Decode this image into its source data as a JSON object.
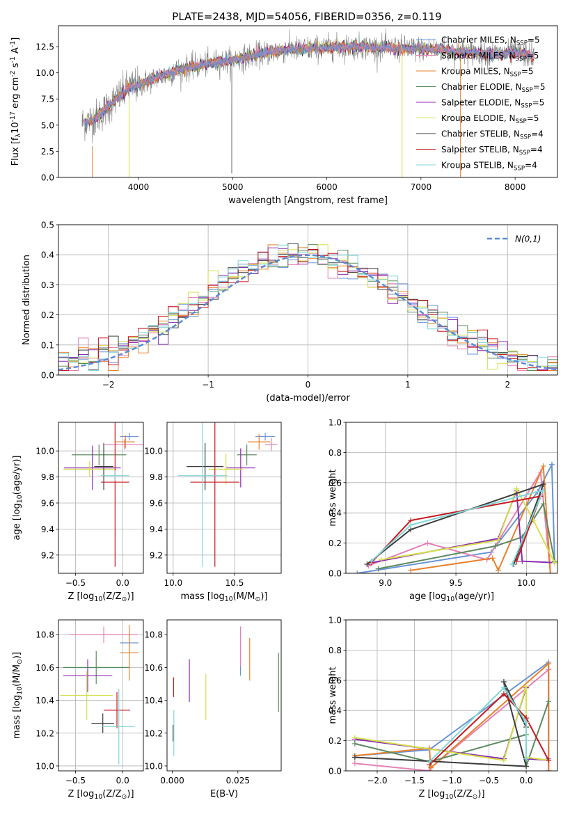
{
  "figure_title": "PLATE=2438, MJD=54056, FIBERID=0356, z=0.119",
  "colors": {
    "Chabrier MILES": "#6a93d8",
    "Salpeter MILES": "#e680b5",
    "Kroupa MILES": "#e8802a",
    "Chabrier ELODIE": "#5b8a5e",
    "Salpeter ELODIE": "#8c2ab3",
    "Kroupa ELODIE": "#d4e04c",
    "Chabrier STELIB": "#3d3d3d",
    "Salpeter STELIB": "#c8161d",
    "Kroupa STELIB": "#7fd6d6",
    "data": "#808080",
    "gauss": "#5a8ad6"
  },
  "chart_data": [
    {
      "id": "spectrum",
      "type": "line",
      "xlabel": "wavelength [Angstrom, rest frame]",
      "ylabel": "Flux [f$_\\lambda$10$^{-17}$ erg cm$^{-2}$ s$^{-1}$ A$^{-1}$]",
      "xlim": [
        3150,
        8450
      ],
      "ylim": [
        0,
        14.5
      ],
      "xticks": [
        4000,
        5000,
        6000,
        7000,
        8000
      ],
      "yticks": [
        0.0,
        2.5,
        5.0,
        7.5,
        10.0,
        12.5
      ],
      "grid": false,
      "legend_position": "right",
      "legend": [
        {
          "label": "Chabrier MILES, N$_{SSP}$=5",
          "key": "Chabrier MILES"
        },
        {
          "label": "Salpeter MILES, N$_{SSP}$=5",
          "key": "Salpeter MILES"
        },
        {
          "label": "Kroupa MILES, N$_{SSP}$=5",
          "key": "Kroupa MILES"
        },
        {
          "label": "Chabrier ELODIE, N$_{SSP}$=5",
          "key": "Chabrier ELODIE"
        },
        {
          "label": "Salpeter ELODIE, N$_{SSP}$=5",
          "key": "Salpeter ELODIE"
        },
        {
          "label": "Kroupa ELODIE, N$_{SSP}$=5",
          "key": "Kroupa ELODIE"
        },
        {
          "label": "Chabrier STELIB, N$_{SSP}$=4",
          "key": "Chabrier STELIB"
        },
        {
          "label": "Salpeter STELIB, N$_{SSP}$=4",
          "key": "Salpeter STELIB"
        },
        {
          "label": "Kroupa STELIB, N$_{SSP}$=4",
          "key": "Kroupa STELIB"
        }
      ],
      "continuum": {
        "x": [
          3400,
          3500,
          3600,
          3700,
          3800,
          3900,
          4000,
          4100,
          4200,
          4300,
          4400,
          4600,
          4800,
          5000,
          5200,
          5400,
          5600,
          5800,
          6000,
          6200,
          6400,
          6600,
          6800,
          7000,
          7200,
          7400,
          7600,
          7800,
          8000,
          8200
        ],
        "y": [
          5.2,
          5.5,
          6.0,
          7.0,
          7.8,
          8.6,
          8.8,
          9.2,
          9.6,
          9.8,
          10.2,
          10.6,
          11.0,
          11.2,
          11.6,
          12.0,
          12.2,
          12.3,
          12.4,
          12.5,
          12.5,
          12.4,
          12.3,
          12.3,
          12.2,
          12.0,
          11.9,
          11.8,
          11.9,
          11.6
        ]
      }
    },
    {
      "id": "residuals",
      "type": "histogram",
      "xlabel": "(data-model)/error",
      "ylabel": "Normed distribution",
      "xlim": [
        -2.5,
        2.5
      ],
      "ylim": [
        0,
        0.5
      ],
      "xticks": [
        -2,
        -1,
        0,
        1,
        2
      ],
      "yticks": [
        0.0,
        0.1,
        0.2,
        0.3,
        0.4,
        0.5
      ],
      "grid": true,
      "legend_position": "top-right",
      "legend": [
        {
          "label": "N(0,1)",
          "key": "gauss"
        }
      ],
      "bin_width": 0.1,
      "bin_start": -2.5,
      "gaussian": {
        "mean": 0,
        "sigma": 1
      }
    },
    {
      "id": "age-vs-Z",
      "type": "errorbar",
      "xlabel": "Z [log$_{10}$(Z/Z$_\\odot$)]",
      "ylabel": "age  [log$_{10}$(age/yr)]",
      "xlim": [
        -0.68,
        0.22
      ],
      "ylim": [
        9.06,
        10.22
      ],
      "xticks": [
        -0.5,
        0.0
      ],
      "yticks": [
        9.2,
        9.4,
        9.6,
        9.8,
        10.0
      ],
      "grid": true,
      "points": [
        {
          "key": "Chabrier MILES",
          "x": 0.07,
          "xerr": 0.1,
          "y": 10.11,
          "yerr": 0.03
        },
        {
          "key": "Salpeter MILES",
          "x": 0.02,
          "xerr": 0.21,
          "y": 10.05,
          "yerr": 0.04
        },
        {
          "key": "Kroupa MILES",
          "x": 0.03,
          "xerr": 0.1,
          "y": 10.07,
          "yerr": 0.05
        },
        {
          "key": "Chabrier ELODIE",
          "x": -0.25,
          "xerr": 0.29,
          "y": 9.97,
          "yerr": 0.08
        },
        {
          "key": "Salpeter ELODIE",
          "x": -0.32,
          "xerr": 0.3,
          "y": 9.87,
          "yerr": 0.17
        },
        {
          "key": "Kroupa ELODIE",
          "x": -0.35,
          "xerr": 0.28,
          "y": 9.86,
          "yerr": 0.06
        },
        {
          "key": "Chabrier STELIB",
          "x": -0.2,
          "xerr": 0.1,
          "y": 9.88,
          "yerr": 0.18
        },
        {
          "key": "Salpeter STELIB",
          "x": -0.08,
          "xerr": 0.15,
          "y": 9.76,
          "yerr": 0.65
        },
        {
          "key": "Kroupa STELIB",
          "x": -0.08,
          "xerr": 0.15,
          "y": 9.81,
          "yerr": 0.04
        }
      ]
    },
    {
      "id": "age-vs-mass",
      "type": "errorbar",
      "xlabel": "mass [log$_{10}$(M/M$_\\odot$)]",
      "ylabel": "",
      "xlim": [
        9.95,
        10.88
      ],
      "ylim": [
        9.06,
        10.22
      ],
      "xticks": [
        10.0,
        10.5
      ],
      "yticks": [
        9.2,
        9.4,
        9.6,
        9.8,
        10.0
      ],
      "grid": true,
      "points": [
        {
          "key": "Chabrier MILES",
          "x": 10.75,
          "xerr": 0.08,
          "y": 10.11,
          "yerr": 0.03
        },
        {
          "key": "Salpeter MILES",
          "x": 10.8,
          "xerr": 0.05,
          "y": 10.05,
          "yerr": 0.05
        },
        {
          "key": "Kroupa MILES",
          "x": 10.7,
          "xerr": 0.09,
          "y": 10.07,
          "yerr": 0.06
        },
        {
          "key": "Chabrier ELODIE",
          "x": 10.6,
          "xerr": 0.08,
          "y": 9.97,
          "yerr": 0.08
        },
        {
          "key": "Salpeter ELODIE",
          "x": 10.55,
          "xerr": 0.12,
          "y": 9.87,
          "yerr": 0.15
        },
        {
          "key": "Kroupa ELODIE",
          "x": 10.43,
          "xerr": 0.14,
          "y": 9.86,
          "yerr": 0.12
        },
        {
          "key": "Chabrier STELIB",
          "x": 10.26,
          "xerr": 0.15,
          "y": 9.88,
          "yerr": 0.18
        },
        {
          "key": "Salpeter STELIB",
          "x": 10.34,
          "xerr": 0.2,
          "y": 9.76,
          "yerr": 0.65
        },
        {
          "key": "Kroupa STELIB",
          "x": 10.24,
          "xerr": 0.2,
          "y": 9.81,
          "yerr": 0.7
        }
      ]
    },
    {
      "id": "weight-vs-age",
      "type": "line",
      "xlabel": "age  [log$_{10}$(age/yr)]",
      "ylabel": "mass weight",
      "xlim": [
        8.72,
        10.22
      ],
      "ylim": [
        0,
        1.0
      ],
      "xticks": [
        9.0,
        9.5,
        10.0
      ],
      "yticks": [
        0.0,
        0.2,
        0.4,
        0.6,
        0.8,
        1.0
      ],
      "grid": true,
      "series": [
        {
          "key": "Chabrier MILES",
          "x": [
            8.8,
            9.75,
            10.08,
            10.18,
            10.2
          ],
          "y": [
            0.0,
            0.14,
            0.54,
            0.72,
            0.08
          ]
        },
        {
          "key": "Salpeter MILES",
          "x": [
            8.88,
            9.3,
            9.72,
            10.1,
            10.17
          ],
          "y": [
            0.05,
            0.2,
            0.09,
            0.67,
            0.0
          ]
        },
        {
          "key": "Kroupa MILES",
          "x": [
            9.18,
            9.76,
            9.8,
            10.12,
            10.17
          ],
          "y": [
            0.02,
            0.1,
            0.02,
            0.71,
            0.0
          ]
        },
        {
          "key": "Chabrier ELODIE",
          "x": [
            8.95,
            9.78,
            9.97,
            10.12,
            10.2
          ],
          "y": [
            0.03,
            0.18,
            0.24,
            0.46,
            0.08
          ]
        },
        {
          "key": "Salpeter ELODIE",
          "x": [
            8.9,
            9.8,
            9.93,
            9.97,
            10.2
          ],
          "y": [
            0.07,
            0.23,
            0.55,
            0.08,
            0.07
          ]
        },
        {
          "key": "Kroupa ELODIE",
          "x": [
            8.97,
            9.8,
            9.93,
            10.05,
            10.2
          ],
          "y": [
            0.09,
            0.22,
            0.56,
            0.35,
            0.07
          ]
        },
        {
          "key": "Chabrier STELIB",
          "x": [
            8.87,
            9.18,
            10.12,
            9.91
          ],
          "y": [
            0.06,
            0.29,
            0.59,
            0.06
          ]
        },
        {
          "key": "Salpeter STELIB",
          "x": [
            8.9,
            9.18,
            10.1,
            9.93
          ],
          "y": [
            0.07,
            0.35,
            0.51,
            0.08
          ]
        },
        {
          "key": "Kroupa STELIB",
          "x": [
            8.9,
            9.18,
            10.12,
            9.9
          ],
          "y": [
            0.08,
            0.32,
            0.55,
            0.06
          ]
        }
      ]
    },
    {
      "id": "mass-vs-Z",
      "type": "errorbar",
      "xlabel": "Z [log$_{10}$(Z/Z$_\\odot$)]",
      "ylabel": "mass [log$_{10}$(M/M$_\\odot$)]",
      "xlim": [
        -0.68,
        0.22
      ],
      "ylim": [
        9.97,
        10.89
      ],
      "xticks": [
        -0.5,
        0.0
      ],
      "yticks": [
        10.0,
        10.2,
        10.4,
        10.6,
        10.8
      ],
      "grid": true,
      "points": [
        {
          "key": "Chabrier MILES",
          "x": 0.07,
          "xerr": 0.1,
          "y": 10.75,
          "yerr": 0.06
        },
        {
          "key": "Salpeter MILES",
          "x": -0.2,
          "xerr": 0.36,
          "y": 10.8,
          "yerr": 0.05
        },
        {
          "key": "Kroupa MILES",
          "x": 0.07,
          "xerr": 0.1,
          "y": 10.69,
          "yerr": 0.17
        },
        {
          "key": "Chabrier ELODIE",
          "x": -0.28,
          "xerr": 0.35,
          "y": 10.6,
          "yerr": 0.1
        },
        {
          "key": "Salpeter ELODIE",
          "x": -0.37,
          "xerr": 0.26,
          "y": 10.55,
          "yerr": 0.1
        },
        {
          "key": "Kroupa ELODIE",
          "x": -0.38,
          "xerr": 0.28,
          "y": 10.43,
          "yerr": 0.15
        },
        {
          "key": "Chabrier STELIB",
          "x": -0.21,
          "xerr": 0.12,
          "y": 10.26,
          "yerr": 0.06
        },
        {
          "key": "Salpeter STELIB",
          "x": -0.06,
          "xerr": 0.14,
          "y": 10.34,
          "yerr": 0.11
        },
        {
          "key": "Kroupa STELIB",
          "x": -0.04,
          "xerr": 0.17,
          "y": 10.24,
          "yerr": 0.23
        }
      ]
    },
    {
      "id": "mass-vs-EBV",
      "type": "errorbar",
      "xlabel": "E(B-V)",
      "ylabel": "",
      "xlim": [
        -0.002,
        0.0415
      ],
      "ylim": [
        9.97,
        10.89
      ],
      "xticks": [
        0.0,
        0.025
      ],
      "yticks": [
        10.0,
        10.2,
        10.4,
        10.6,
        10.8
      ],
      "grid": false,
      "points": [
        {
          "key": "Chabrier MILES",
          "x": 0.026,
          "xerr": 0,
          "y": 10.7,
          "yerr": 0.15
        },
        {
          "key": "Salpeter MILES",
          "x": 0.026,
          "xerr": 0,
          "y": 10.73,
          "yerr": 0.12
        },
        {
          "key": "Kroupa MILES",
          "x": 0.0295,
          "xerr": 0,
          "y": 10.65,
          "yerr": 0.13
        },
        {
          "key": "Chabrier ELODIE",
          "x": 0.0405,
          "xerr": 0,
          "y": 10.51,
          "yerr": 0.18
        },
        {
          "key": "Salpeter ELODIE",
          "x": 0.0065,
          "xerr": 0,
          "y": 10.52,
          "yerr": 0.13
        },
        {
          "key": "Kroupa ELODIE",
          "x": 0.0128,
          "xerr": 0,
          "y": 10.42,
          "yerr": 0.14
        },
        {
          "key": "Chabrier STELIB",
          "x": 0.0003,
          "xerr": 0,
          "y": 10.2,
          "yerr": 0.05
        },
        {
          "key": "Salpeter STELIB",
          "x": 0.0005,
          "xerr": 0,
          "y": 10.48,
          "yerr": 0.06
        },
        {
          "key": "Kroupa STELIB",
          "x": 0.0006,
          "xerr": 0,
          "y": 10.2,
          "yerr": 0.14
        }
      ]
    },
    {
      "id": "weight-vs-Z",
      "type": "line",
      "xlabel": "Z [log$_{10}$(Z/Z$_\\odot$)]",
      "ylabel": "mass weight",
      "xlim": [
        -2.42,
        0.42
      ],
      "ylim": [
        0,
        1.0
      ],
      "xticks": [
        -2.0,
        -1.5,
        -1.0,
        -0.5,
        0.0
      ],
      "yticks": [
        0.0,
        0.2,
        0.4,
        0.6,
        0.8,
        1.0
      ],
      "grid": true,
      "series": [
        {
          "key": "Chabrier MILES",
          "x": [
            -2.3,
            -1.3,
            0.3,
            0.3,
            0.3
          ],
          "y": [
            0.1,
            0.14,
            0.72,
            0.08,
            0.0
          ]
        },
        {
          "key": "Salpeter MILES",
          "x": [
            -2.3,
            -1.3,
            -1.28,
            0.3,
            0.3
          ],
          "y": [
            0.05,
            0.0,
            0.02,
            0.67,
            0.0
          ]
        },
        {
          "key": "Kroupa MILES",
          "x": [
            -2.3,
            -1.3,
            -1.28,
            0.3,
            0.3
          ],
          "y": [
            0.1,
            0.15,
            0.02,
            0.71,
            0.0
          ]
        },
        {
          "key": "Chabrier ELODIE",
          "x": [
            -2.3,
            -1.3,
            0.0,
            0.0,
            0.3
          ],
          "y": [
            0.18,
            0.06,
            0.24,
            0.03,
            0.46
          ]
        },
        {
          "key": "Salpeter ELODIE",
          "x": [
            -2.3,
            -0.3,
            0.0,
            0.0,
            0.3
          ],
          "y": [
            0.21,
            0.08,
            0.55,
            0.08,
            0.07
          ]
        },
        {
          "key": "Kroupa ELODIE",
          "x": [
            -2.3,
            -0.3,
            0.0,
            0.0,
            0.3
          ],
          "y": [
            0.22,
            0.07,
            0.56,
            0.09,
            0.07
          ]
        },
        {
          "key": "Chabrier STELIB",
          "x": [
            -2.3,
            0.0,
            -0.3,
            0.0
          ],
          "y": [
            0.09,
            0.03,
            0.59,
            0.29
          ]
        },
        {
          "key": "Salpeter STELIB",
          "x": [
            -1.3,
            -0.3,
            0.0,
            0.3
          ],
          "y": [
            0.04,
            0.51,
            0.35,
            0.07
          ]
        },
        {
          "key": "Kroupa STELIB",
          "x": [
            -1.3,
            -0.3,
            0.0,
            0.0
          ],
          "y": [
            0.06,
            0.55,
            0.32,
            0.08
          ]
        }
      ]
    }
  ]
}
